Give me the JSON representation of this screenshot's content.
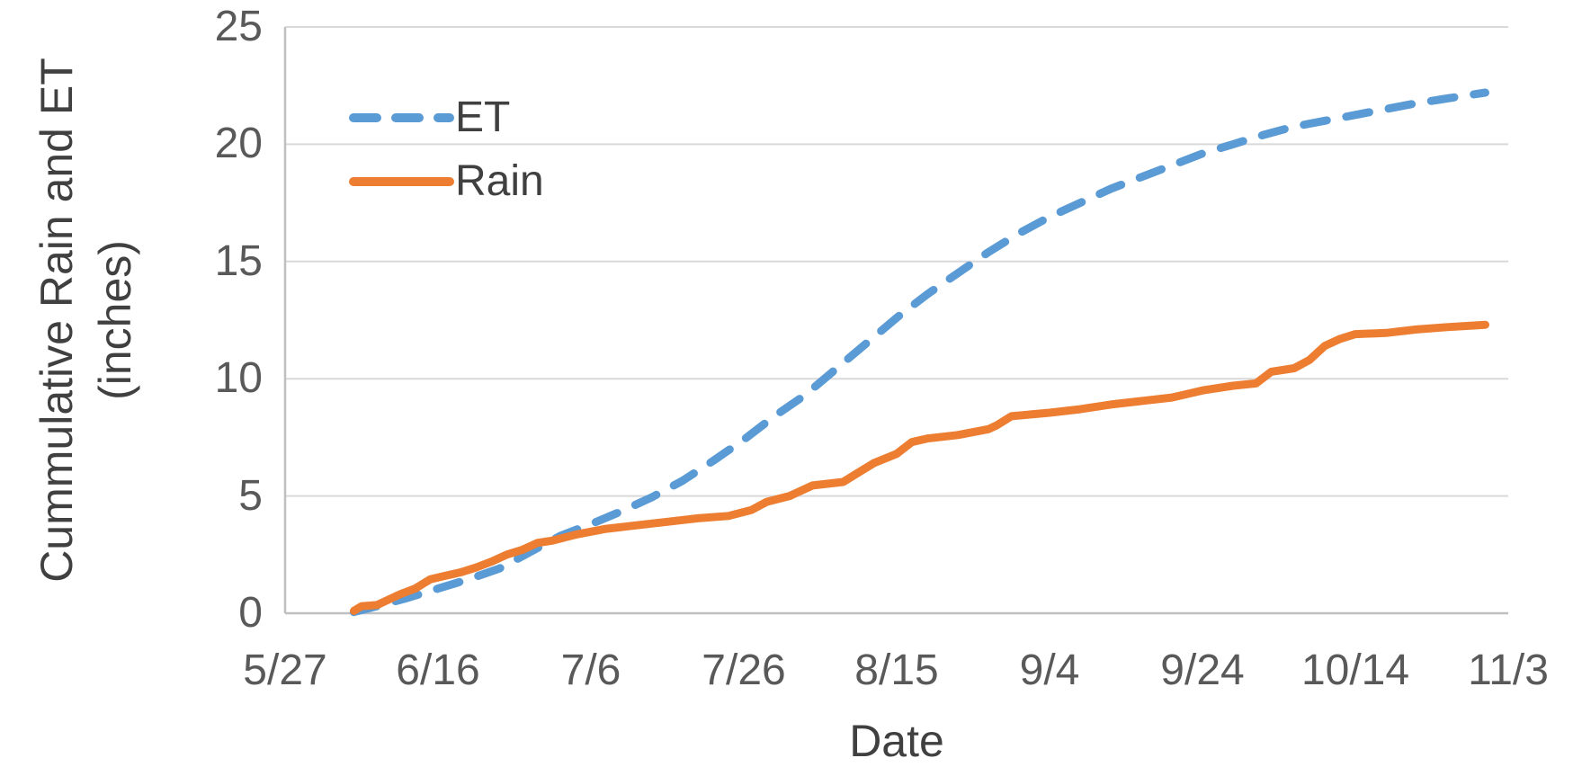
{
  "chart_data": {
    "type": "line",
    "title": "",
    "xlabel": "Date",
    "ylabel_line1": "Cummulative Rain and ET",
    "ylabel_line2": "(inches)",
    "ylim": [
      0,
      25
    ],
    "y_tick_labels": [
      "25",
      "20",
      "15",
      "10",
      "5",
      "0"
    ],
    "y_tick_values": [
      25,
      20,
      15,
      10,
      5,
      0
    ],
    "x_tick_labels": [
      "5/27",
      "6/16",
      "7/6",
      "7/26",
      "8/15",
      "9/4",
      "9/24",
      "10/14",
      "11/3"
    ],
    "x_range_dates": [
      "5/27",
      "11/3"
    ],
    "grid": "horizontal-only",
    "legend_position": "top-left-inside",
    "series": [
      {
        "name": "ET",
        "color": "#5B9BD5",
        "style": "dashed",
        "points": [
          [
            "6/5",
            0.05
          ],
          [
            "6/8",
            0.3
          ],
          [
            "6/12",
            0.65
          ],
          [
            "6/16",
            1.05
          ],
          [
            "6/20",
            1.45
          ],
          [
            "6/24",
            1.9
          ],
          [
            "6/28",
            2.6
          ],
          [
            "7/2",
            3.3
          ],
          [
            "7/6",
            3.8
          ],
          [
            "7/10",
            4.35
          ],
          [
            "7/14",
            4.95
          ],
          [
            "7/18",
            5.65
          ],
          [
            "7/22",
            6.5
          ],
          [
            "7/26",
            7.4
          ],
          [
            "7/30",
            8.4
          ],
          [
            "8/3",
            9.3
          ],
          [
            "8/7",
            10.4
          ],
          [
            "8/11",
            11.5
          ],
          [
            "8/15",
            12.6
          ],
          [
            "8/19",
            13.6
          ],
          [
            "8/23",
            14.5
          ],
          [
            "8/27",
            15.4
          ],
          [
            "8/31",
            16.2
          ],
          [
            "9/4",
            16.9
          ],
          [
            "9/8",
            17.5
          ],
          [
            "9/12",
            18.1
          ],
          [
            "9/16",
            18.6
          ],
          [
            "9/20",
            19.1
          ],
          [
            "9/24",
            19.6
          ],
          [
            "9/28",
            20.0
          ],
          [
            "10/2",
            20.4
          ],
          [
            "10/6",
            20.75
          ],
          [
            "10/10",
            21.0
          ],
          [
            "10/14",
            21.25
          ],
          [
            "10/18",
            21.5
          ],
          [
            "10/22",
            21.75
          ],
          [
            "10/26",
            21.95
          ],
          [
            "10/31",
            22.2
          ]
        ]
      },
      {
        "name": "Rain",
        "color": "#ED7D31",
        "style": "solid",
        "points": [
          [
            "6/5",
            0.1
          ],
          [
            "6/6",
            0.3
          ],
          [
            "6/8",
            0.35
          ],
          [
            "6/11",
            0.8
          ],
          [
            "6/13",
            1.05
          ],
          [
            "6/15",
            1.45
          ],
          [
            "6/17",
            1.6
          ],
          [
            "6/19",
            1.75
          ],
          [
            "6/21",
            1.95
          ],
          [
            "6/23",
            2.2
          ],
          [
            "6/25",
            2.5
          ],
          [
            "6/27",
            2.7
          ],
          [
            "6/29",
            3.0
          ],
          [
            "7/1",
            3.1
          ],
          [
            "7/4",
            3.35
          ],
          [
            "7/8",
            3.6
          ],
          [
            "7/12",
            3.75
          ],
          [
            "7/16",
            3.9
          ],
          [
            "7/20",
            4.05
          ],
          [
            "7/24",
            4.15
          ],
          [
            "7/27",
            4.4
          ],
          [
            "7/29",
            4.75
          ],
          [
            "8/1",
            5.0
          ],
          [
            "8/4",
            5.45
          ],
          [
            "8/8",
            5.6
          ],
          [
            "8/10",
            6.0
          ],
          [
            "8/12",
            6.4
          ],
          [
            "8/15",
            6.8
          ],
          [
            "8/17",
            7.3
          ],
          [
            "8/19",
            7.45
          ],
          [
            "8/23",
            7.6
          ],
          [
            "8/27",
            7.85
          ],
          [
            "8/28",
            8.0
          ],
          [
            "8/30",
            8.4
          ],
          [
            "9/4",
            8.55
          ],
          [
            "9/8",
            8.7
          ],
          [
            "9/12",
            8.9
          ],
          [
            "9/16",
            9.05
          ],
          [
            "9/20",
            9.2
          ],
          [
            "9/24",
            9.5
          ],
          [
            "9/28",
            9.7
          ],
          [
            "10/1",
            9.8
          ],
          [
            "10/3",
            10.3
          ],
          [
            "10/6",
            10.45
          ],
          [
            "10/8",
            10.8
          ],
          [
            "10/10",
            11.4
          ],
          [
            "10/12",
            11.7
          ],
          [
            "10/14",
            11.9
          ],
          [
            "10/18",
            11.95
          ],
          [
            "10/22",
            12.1
          ],
          [
            "10/26",
            12.2
          ],
          [
            "10/31",
            12.3
          ]
        ]
      }
    ]
  },
  "colors": {
    "et_line": "#5B9BD5",
    "rain_line": "#ED7D31",
    "gridline": "#D9D9D9",
    "axis": "#BFBFBF",
    "tick_text": "#595959",
    "title_text": "#404040",
    "background": "#FFFFFF"
  }
}
